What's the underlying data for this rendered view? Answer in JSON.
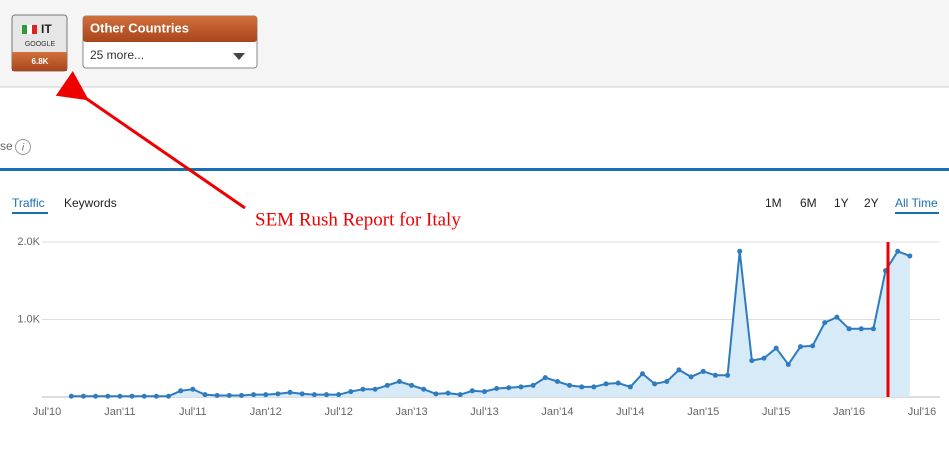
{
  "header": {
    "country": "IT",
    "engine": "GOOGLE",
    "traffic": "6.8K",
    "other_title": "Other Countries",
    "other_select": "25 more..."
  },
  "section_label": "se",
  "info_icon": "i",
  "tabs": [
    "Traffic",
    "Keywords"
  ],
  "ranges": [
    "1M",
    "6M",
    "1Y",
    "2Y",
    "All Time"
  ],
  "annotation": "SEM Rush Report for Italy",
  "chart_data": {
    "type": "area",
    "color": "#2f7bbf",
    "categories": [
      "Jul'10",
      null,
      null,
      null,
      null,
      null,
      "Jan'11",
      null,
      null,
      null,
      null,
      null,
      "Jul'11",
      null,
      null,
      null,
      null,
      null,
      "Jan'12",
      null,
      null,
      null,
      null,
      null,
      "Jul'12",
      null,
      null,
      null,
      null,
      null,
      "Jan'13",
      null,
      null,
      null,
      null,
      null,
      "Jul'13",
      null,
      null,
      null,
      null,
      null,
      "Jan'14",
      null,
      null,
      null,
      null,
      null,
      "Jul'14",
      null,
      null,
      null,
      null,
      null,
      "Jan'15",
      null,
      null,
      null,
      null,
      null,
      "Jul'15",
      null,
      null,
      null,
      null,
      null,
      "Jan'16",
      null,
      null,
      null,
      null,
      null,
      "Jul'16"
    ],
    "values": [
      null,
      null,
      10,
      10,
      10,
      10,
      10,
      10,
      10,
      10,
      10,
      80,
      100,
      30,
      20,
      20,
      20,
      30,
      30,
      40,
      60,
      40,
      30,
      30,
      30,
      70,
      100,
      100,
      150,
      200,
      150,
      100,
      40,
      50,
      30,
      80,
      70,
      110,
      120,
      130,
      150,
      250,
      200,
      150,
      130,
      130,
      170,
      180,
      130,
      300,
      170,
      200,
      350,
      260,
      330,
      280,
      280,
      1880,
      470,
      500,
      630,
      420,
      650,
      660,
      960,
      1030,
      880,
      880,
      880,
      1630,
      1880,
      1820,
      null
    ],
    "ylim": [
      0,
      2000
    ],
    "yticks": [
      {
        "value": 1000,
        "label": "1.0K"
      },
      {
        "value": 2000,
        "label": "2.0K"
      }
    ],
    "grid": true
  }
}
